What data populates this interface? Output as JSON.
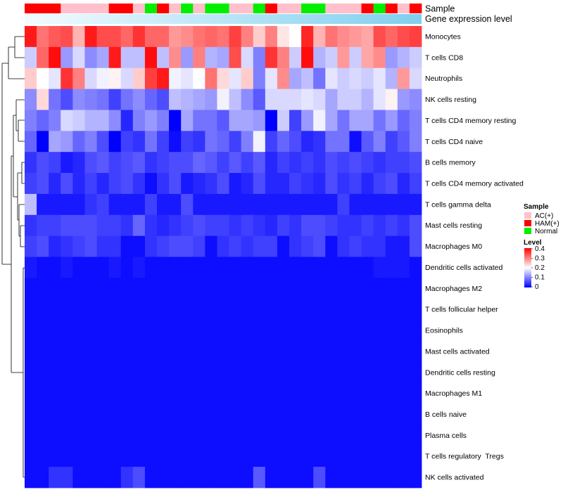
{
  "chart_data": {
    "type": "heatmap",
    "title": "",
    "annotation_bars": [
      {
        "label": "Sample"
      },
      {
        "label": "Gene expression level"
      }
    ],
    "sample_groups": [
      "HAM",
      "HAM",
      "HAM",
      "AC",
      "AC",
      "AC",
      "AC",
      "HAM",
      "HAM",
      "AC",
      "Normal",
      "HAM",
      "AC",
      "Normal",
      "AC",
      "Normal",
      "Normal",
      "AC",
      "AC",
      "Normal",
      "HAM",
      "AC",
      "AC",
      "Normal",
      "Normal",
      "AC",
      "AC",
      "AC",
      "HAM",
      "Normal",
      "HAM",
      "AC",
      "HAM"
    ],
    "expression_gradient": [
      "#f4fbff",
      "#7ecfee"
    ],
    "rows": [
      "Monocytes",
      "T cells CD8",
      "Neutrophils",
      "NK cells resting",
      "T cells CD4 memory resting",
      "T cells CD4 naive",
      "B cells memory",
      "T cells CD4 memory activated",
      "T cells gamma delta",
      "Mast cells resting",
      "Macrophages M0",
      "Dendritic cells activated",
      "Macrophages M2",
      "T cells follicular helper",
      "Eosinophils",
      "Mast cells activated",
      "Dendritic cells resting",
      "Macrophages M1",
      "B cells naive",
      "Plasma cells",
      "T cells regulatory  Tregs",
      "NK cells activated"
    ],
    "values": [
      [
        0.38,
        0.31,
        0.33,
        0.34,
        0.26,
        0.38,
        0.34,
        0.34,
        0.32,
        0.36,
        0.32,
        0.32,
        0.28,
        0.29,
        0.31,
        0.32,
        0.31,
        0.35,
        0.3,
        0.24,
        0.3,
        0.22,
        0.2,
        0.37,
        0.26,
        0.31,
        0.29,
        0.28,
        0.27,
        0.34,
        0.32,
        0.34,
        0.35
      ],
      [
        0.16,
        0.32,
        0.39,
        0.12,
        0.17,
        0.11,
        0.13,
        0.38,
        0.15,
        0.15,
        0.39,
        0.15,
        0.29,
        0.12,
        0.3,
        0.14,
        0.13,
        0.34,
        0.17,
        0.1,
        0.36,
        0.3,
        0.16,
        0.39,
        0.14,
        0.16,
        0.28,
        0.16,
        0.27,
        0.29,
        0.12,
        0.14,
        0.16
      ],
      [
        0.24,
        0.2,
        0.18,
        0.36,
        0.3,
        0.17,
        0.19,
        0.21,
        0.17,
        0.24,
        0.35,
        0.38,
        0.19,
        0.18,
        0.2,
        0.31,
        0.23,
        0.18,
        0.24,
        0.1,
        0.18,
        0.29,
        0.13,
        0.15,
        0.09,
        0.18,
        0.16,
        0.17,
        0.16,
        0.18,
        0.14,
        0.28,
        0.17
      ],
      [
        0.11,
        0.23,
        0.09,
        0.06,
        0.11,
        0.1,
        0.09,
        0.05,
        0.09,
        0.11,
        0.08,
        0.06,
        0.15,
        0.14,
        0.13,
        0.12,
        0.19,
        0.15,
        0.11,
        0.07,
        0.17,
        0.17,
        0.17,
        0.18,
        0.17,
        0.13,
        0.16,
        0.16,
        0.14,
        0.18,
        0.21,
        0.12,
        0.11
      ],
      [
        0.1,
        0.08,
        0.1,
        0.17,
        0.16,
        0.14,
        0.14,
        0.11,
        0.03,
        0.1,
        0.12,
        0.1,
        0.0,
        0.13,
        0.09,
        0.09,
        0.07,
        0.13,
        0.13,
        0.12,
        0.0,
        0.16,
        0.05,
        0.12,
        0.19,
        0.13,
        0.09,
        0.13,
        0.13,
        0.09,
        0.12,
        0.08,
        0.1
      ],
      [
        0.08,
        0.0,
        0.13,
        0.12,
        0.08,
        0.1,
        0.06,
        0.0,
        0.05,
        0.04,
        0.09,
        0.05,
        0.01,
        0.05,
        0.04,
        0.09,
        0.08,
        0.05,
        0.1,
        0.19,
        0.05,
        0.08,
        0.06,
        0.03,
        0.04,
        0.09,
        0.09,
        0.01,
        0.07,
        0.1,
        0.05,
        0.07,
        0.1
      ],
      [
        0.04,
        0.06,
        0.05,
        0.02,
        0.03,
        0.06,
        0.07,
        0.05,
        0.06,
        0.07,
        0.04,
        0.05,
        0.06,
        0.06,
        0.08,
        0.07,
        0.05,
        0.07,
        0.05,
        0.07,
        0.03,
        0.05,
        0.04,
        0.05,
        0.04,
        0.06,
        0.05,
        0.06,
        0.05,
        0.04,
        0.05,
        0.05,
        0.06
      ],
      [
        0.05,
        0.06,
        0.03,
        0.06,
        0.03,
        0.05,
        0.03,
        0.05,
        0.06,
        0.04,
        0.01,
        0.04,
        0.06,
        0.02,
        0.03,
        0.04,
        0.06,
        0.02,
        0.03,
        0.06,
        0.03,
        0.03,
        0.05,
        0.04,
        0.03,
        0.06,
        0.04,
        0.05,
        0.03,
        0.05,
        0.06,
        0.03,
        0.05
      ],
      [
        0.15,
        0.02,
        0.02,
        0.02,
        0.02,
        0.04,
        0.05,
        0.02,
        0.02,
        0.02,
        0.05,
        0.02,
        0.02,
        0.06,
        0.02,
        0.02,
        0.02,
        0.02,
        0.02,
        0.02,
        0.02,
        0.02,
        0.02,
        0.02,
        0.02,
        0.02,
        0.05,
        0.02,
        0.02,
        0.02,
        0.02,
        0.02,
        0.02
      ],
      [
        0.04,
        0.05,
        0.05,
        0.06,
        0.06,
        0.06,
        0.05,
        0.05,
        0.04,
        0.08,
        0.04,
        0.03,
        0.04,
        0.05,
        0.06,
        0.05,
        0.05,
        0.04,
        0.05,
        0.04,
        0.03,
        0.05,
        0.04,
        0.06,
        0.06,
        0.05,
        0.04,
        0.04,
        0.05,
        0.04,
        0.05,
        0.04,
        0.06
      ],
      [
        0.05,
        0.06,
        0.03,
        0.04,
        0.05,
        0.06,
        0.04,
        0.04,
        0.01,
        0.01,
        0.04,
        0.05,
        0.06,
        0.06,
        0.05,
        0.01,
        0.04,
        0.05,
        0.04,
        0.05,
        0.05,
        0.01,
        0.04,
        0.05,
        0.06,
        0.01,
        0.04,
        0.05,
        0.04,
        0.04,
        0.02,
        0.02,
        0.06
      ],
      [
        0.02,
        0.01,
        0.01,
        0.02,
        0.01,
        0.01,
        0.01,
        0.02,
        0.01,
        0.02,
        0.01,
        0.01,
        0.01,
        0.01,
        0.01,
        0.01,
        0.01,
        0.01,
        0.01,
        0.01,
        0.01,
        0.01,
        0.01,
        0.01,
        0.01,
        0.01,
        0.01,
        0.01,
        0.01,
        0.02,
        0.02,
        0.02,
        0.01
      ],
      [
        0.01,
        0.01,
        0.01,
        0.01,
        0.01,
        0.01,
        0.01,
        0.01,
        0.01,
        0.01,
        0.01,
        0.01,
        0.01,
        0.01,
        0.01,
        0.01,
        0.01,
        0.01,
        0.01,
        0.01,
        0.01,
        0.01,
        0.01,
        0.01,
        0.01,
        0.01,
        0.01,
        0.01,
        0.01,
        0.01,
        0.01,
        0.01,
        0.01
      ],
      [
        0.01,
        0.01,
        0.01,
        0.01,
        0.01,
        0.01,
        0.01,
        0.01,
        0.01,
        0.01,
        0.01,
        0.01,
        0.01,
        0.01,
        0.01,
        0.01,
        0.01,
        0.01,
        0.01,
        0.01,
        0.01,
        0.01,
        0.01,
        0.01,
        0.01,
        0.01,
        0.01,
        0.01,
        0.01,
        0.01,
        0.01,
        0.01,
        0.01
      ],
      [
        0.01,
        0.01,
        0.01,
        0.01,
        0.01,
        0.01,
        0.01,
        0.01,
        0.01,
        0.01,
        0.01,
        0.01,
        0.01,
        0.01,
        0.01,
        0.01,
        0.01,
        0.01,
        0.01,
        0.01,
        0.01,
        0.01,
        0.01,
        0.01,
        0.01,
        0.01,
        0.01,
        0.01,
        0.01,
        0.01,
        0.01,
        0.01,
        0.01
      ],
      [
        0.01,
        0.01,
        0.01,
        0.01,
        0.01,
        0.01,
        0.01,
        0.01,
        0.01,
        0.01,
        0.01,
        0.01,
        0.01,
        0.01,
        0.01,
        0.01,
        0.01,
        0.01,
        0.01,
        0.01,
        0.01,
        0.01,
        0.01,
        0.01,
        0.01,
        0.01,
        0.01,
        0.01,
        0.01,
        0.01,
        0.01,
        0.01,
        0.01
      ],
      [
        0.01,
        0.01,
        0.01,
        0.01,
        0.01,
        0.01,
        0.01,
        0.01,
        0.01,
        0.01,
        0.01,
        0.01,
        0.01,
        0.01,
        0.01,
        0.01,
        0.01,
        0.01,
        0.01,
        0.01,
        0.01,
        0.01,
        0.01,
        0.01,
        0.01,
        0.01,
        0.01,
        0.01,
        0.01,
        0.01,
        0.01,
        0.01,
        0.01
      ],
      [
        0.01,
        0.01,
        0.01,
        0.01,
        0.01,
        0.01,
        0.01,
        0.01,
        0.01,
        0.01,
        0.01,
        0.01,
        0.01,
        0.01,
        0.01,
        0.01,
        0.01,
        0.01,
        0.01,
        0.01,
        0.01,
        0.01,
        0.01,
        0.01,
        0.01,
        0.01,
        0.01,
        0.01,
        0.01,
        0.01,
        0.01,
        0.01,
        0.01
      ],
      [
        0.01,
        0.01,
        0.01,
        0.01,
        0.01,
        0.01,
        0.01,
        0.01,
        0.01,
        0.01,
        0.01,
        0.01,
        0.01,
        0.01,
        0.01,
        0.01,
        0.01,
        0.01,
        0.01,
        0.01,
        0.01,
        0.01,
        0.01,
        0.01,
        0.01,
        0.01,
        0.01,
        0.01,
        0.01,
        0.01,
        0.01,
        0.01,
        0.01
      ],
      [
        0.01,
        0.01,
        0.01,
        0.01,
        0.01,
        0.01,
        0.01,
        0.01,
        0.01,
        0.01,
        0.01,
        0.01,
        0.01,
        0.01,
        0.01,
        0.01,
        0.01,
        0.01,
        0.01,
        0.01,
        0.01,
        0.01,
        0.01,
        0.01,
        0.01,
        0.01,
        0.01,
        0.01,
        0.01,
        0.01,
        0.01,
        0.01,
        0.01
      ],
      [
        0.01,
        0.01,
        0.01,
        0.01,
        0.01,
        0.01,
        0.01,
        0.01,
        0.01,
        0.01,
        0.01,
        0.01,
        0.01,
        0.01,
        0.01,
        0.01,
        0.01,
        0.01,
        0.01,
        0.01,
        0.01,
        0.01,
        0.01,
        0.01,
        0.01,
        0.01,
        0.01,
        0.01,
        0.01,
        0.01,
        0.01,
        0.01,
        0.01
      ],
      [
        0.01,
        0.01,
        0.04,
        0.04,
        0.01,
        0.01,
        0.01,
        0.01,
        0.04,
        0.06,
        0.01,
        0.01,
        0.01,
        0.01,
        0.01,
        0.01,
        0.01,
        0.01,
        0.01,
        0.07,
        0.01,
        0.01,
        0.01,
        0.01,
        0.06,
        0.01,
        0.01,
        0.01,
        0.01,
        0.01,
        0.01,
        0.01,
        0.01
      ]
    ],
    "color_scale": {
      "min": 0,
      "mid": 0.2,
      "max": 0.4,
      "low": "#0000ff",
      "mid_color": "#ffffff",
      "high": "#ff0000"
    },
    "legend": {
      "sample": {
        "title": "Sample",
        "items": [
          {
            "label": "AC(+)",
            "color": "#ffc0cb"
          },
          {
            "label": "HAM(+)",
            "color": "#ff0000"
          },
          {
            "label": "Normal",
            "color": "#00ee00"
          }
        ]
      },
      "level": {
        "title": "Level",
        "ticks": [
          "0.4",
          "0.3",
          "0.2",
          "0.1",
          "0"
        ]
      }
    },
    "sample_colors": {
      "AC": "#ffc0cb",
      "HAM": "#ff0000",
      "Normal": "#00ee00"
    }
  }
}
